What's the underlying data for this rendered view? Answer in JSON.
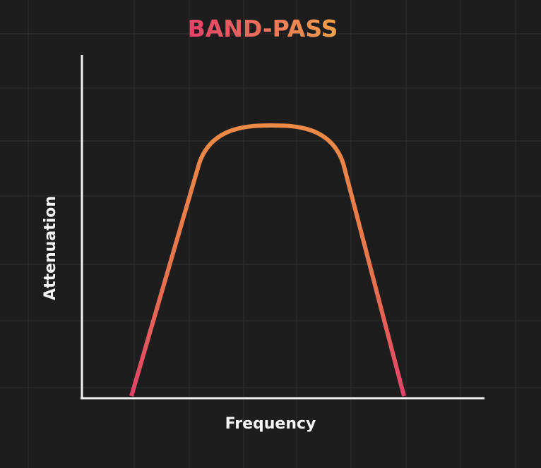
{
  "title": "BAND-PASS",
  "y_axis_label": "Attenuation",
  "x_axis_label": "Frequency"
}
